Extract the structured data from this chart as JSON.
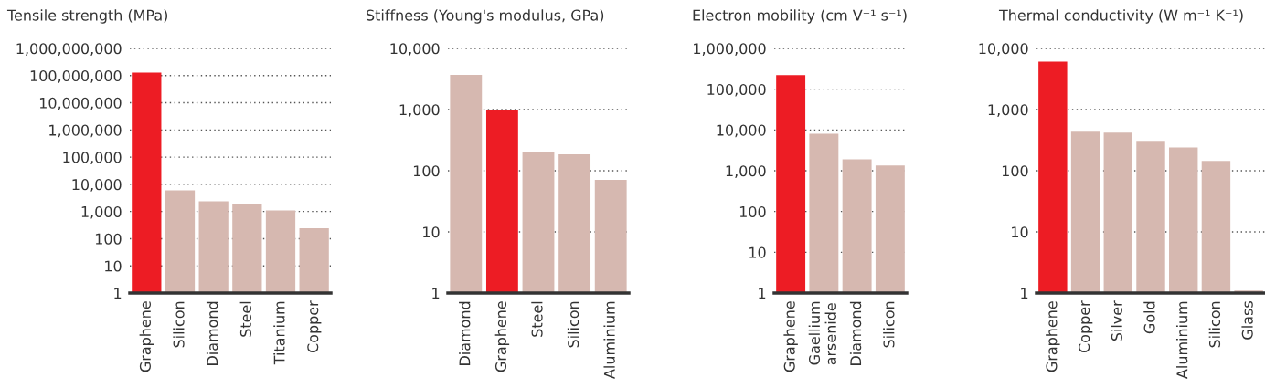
{
  "chart_data": [
    {
      "type": "bar",
      "title": "Tensile strength (MPa)",
      "categories": [
        "Graphene",
        "Silicon",
        "Diamond",
        "Steel",
        "Titanium",
        "Copper"
      ],
      "values": [
        130000000,
        6000,
        2350,
        1900,
        1100,
        240
      ],
      "colors": [
        "#ed1c24",
        "#d6b8b0",
        "#d6b8b0",
        "#d6b8b0",
        "#d6b8b0",
        "#d6b8b0"
      ],
      "log": "y",
      "ylim": [
        1,
        1000000000
      ],
      "yticks": [
        1,
        10,
        100,
        {
          "value": 1000,
          "label": "1,000"
        },
        {
          "value": 10000,
          "label": "10,000"
        },
        {
          "value": 100000,
          "label": "100,000"
        },
        {
          "value": 1000000,
          "label": "1,000,000"
        },
        {
          "value": 10000000,
          "label": "10,000,000"
        },
        {
          "value": 100000000,
          "label": "100,000,000"
        },
        {
          "value": 1000000000,
          "label": "1,000,000,000"
        }
      ],
      "grid": "y"
    },
    {
      "type": "bar",
      "title": "Stiffness (Young's modulus, GPa)",
      "categories": [
        "Diamond",
        "Graphene",
        "Steel",
        "Silicon",
        "Aluminium"
      ],
      "values": [
        3700,
        1000,
        205,
        186,
        71
      ],
      "colors": [
        "#d6b8b0",
        "#ed1c24",
        "#d6b8b0",
        "#d6b8b0",
        "#d6b8b0"
      ],
      "log": "y",
      "ylim": [
        1,
        10000
      ],
      "yticks": [
        1,
        10,
        100,
        {
          "value": 1000,
          "label": "1,000"
        },
        {
          "value": 10000,
          "label": "10,000"
        }
      ],
      "grid": "y"
    },
    {
      "type": "bar",
      "title": "Electron mobility (cm V⁻¹ s⁻¹)",
      "categories": [
        "Graphene",
        "Gaellium\narsenide",
        "Diamond",
        "Silicon"
      ],
      "values": [
        220000,
        8100,
        1900,
        1340
      ],
      "colors": [
        "#ed1c24",
        "#d6b8b0",
        "#d6b8b0",
        "#d6b8b0"
      ],
      "log": "y",
      "ylim": [
        1,
        1000000
      ],
      "yticks": [
        1,
        10,
        100,
        {
          "value": 1000,
          "label": "1,000"
        },
        {
          "value": 10000,
          "label": "10,000"
        },
        {
          "value": 100000,
          "label": "100,000"
        },
        {
          "value": 1000000,
          "label": "1,000,000"
        }
      ],
      "grid": "y"
    },
    {
      "type": "bar",
      "title": "Thermal conductivity (W m⁻¹ K⁻¹)",
      "categories": [
        "Graphene",
        "Copper",
        "Silver",
        "Gold",
        "Aluminium",
        "Silicon",
        "Glass"
      ],
      "values": [
        6100,
        433,
        420,
        309,
        240,
        145,
        1.1
      ],
      "colors": [
        "#ed1c24",
        "#d6b8b0",
        "#d6b8b0",
        "#d6b8b0",
        "#d6b8b0",
        "#d6b8b0",
        "#d6b8b0"
      ],
      "log": "y",
      "ylim": [
        1,
        10000
      ],
      "yticks": [
        1,
        10,
        100,
        {
          "value": 1000,
          "label": "1,000"
        },
        {
          "value": 10000,
          "label": "10,000"
        }
      ],
      "grid": "y"
    }
  ]
}
